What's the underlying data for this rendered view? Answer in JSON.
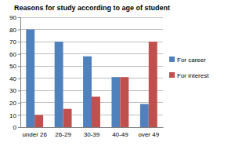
{
  "chart_data": {
    "type": "bar",
    "title": "Reasons for study according to age of student",
    "categories": [
      "under 26",
      "26-29",
      "30-39",
      "40-49",
      "over 49"
    ],
    "series": [
      {
        "name": "For career",
        "color": "#4f81bd",
        "values": [
          80,
          70,
          58,
          41,
          19
        ]
      },
      {
        "name": "For interest",
        "color": "#c0504d",
        "values": [
          10,
          15,
          25,
          41,
          70
        ]
      }
    ],
    "ylim": [
      0,
      90
    ],
    "yticks": [
      0,
      10,
      20,
      30,
      40,
      50,
      60,
      70,
      80,
      90
    ],
    "grid": true,
    "legend": "right"
  }
}
